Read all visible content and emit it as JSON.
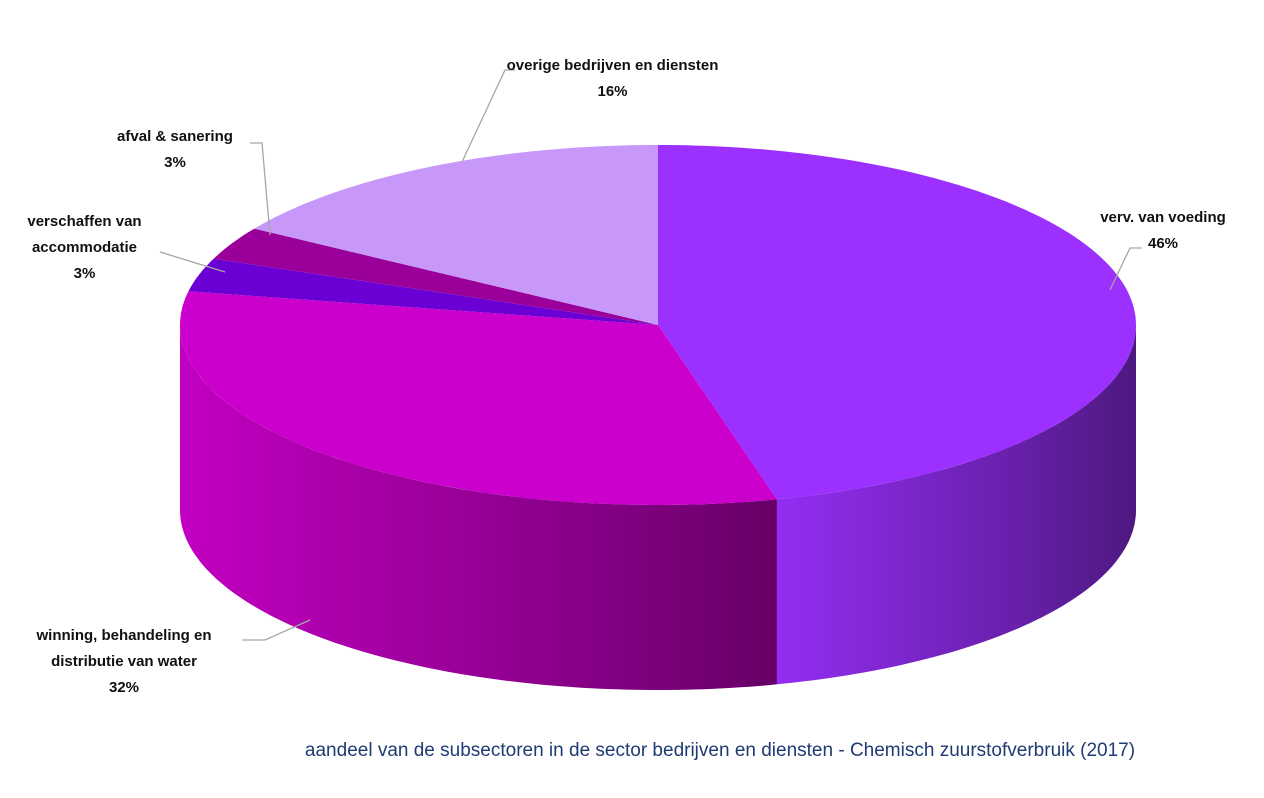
{
  "chart_data": {
    "type": "pie",
    "title": "aandeel van de subsectoren in de sector bedrijven en diensten - Chemisch zuurstofverbruik (2017)",
    "categories": [
      "verv. van voeding",
      "winning, behandeling en distributie van water",
      "verschaffen van accommodatie",
      "afval & sanering",
      "overige bedrijven en diensten"
    ],
    "values": [
      46,
      32,
      3,
      3,
      16
    ],
    "value_labels": [
      "46%",
      "32%",
      "3%",
      "3%",
      "16%"
    ],
    "colors": [
      "#9b30ff",
      "#cc00cc",
      "#6a00d4",
      "#9a0099",
      "#c897fa"
    ]
  }
}
